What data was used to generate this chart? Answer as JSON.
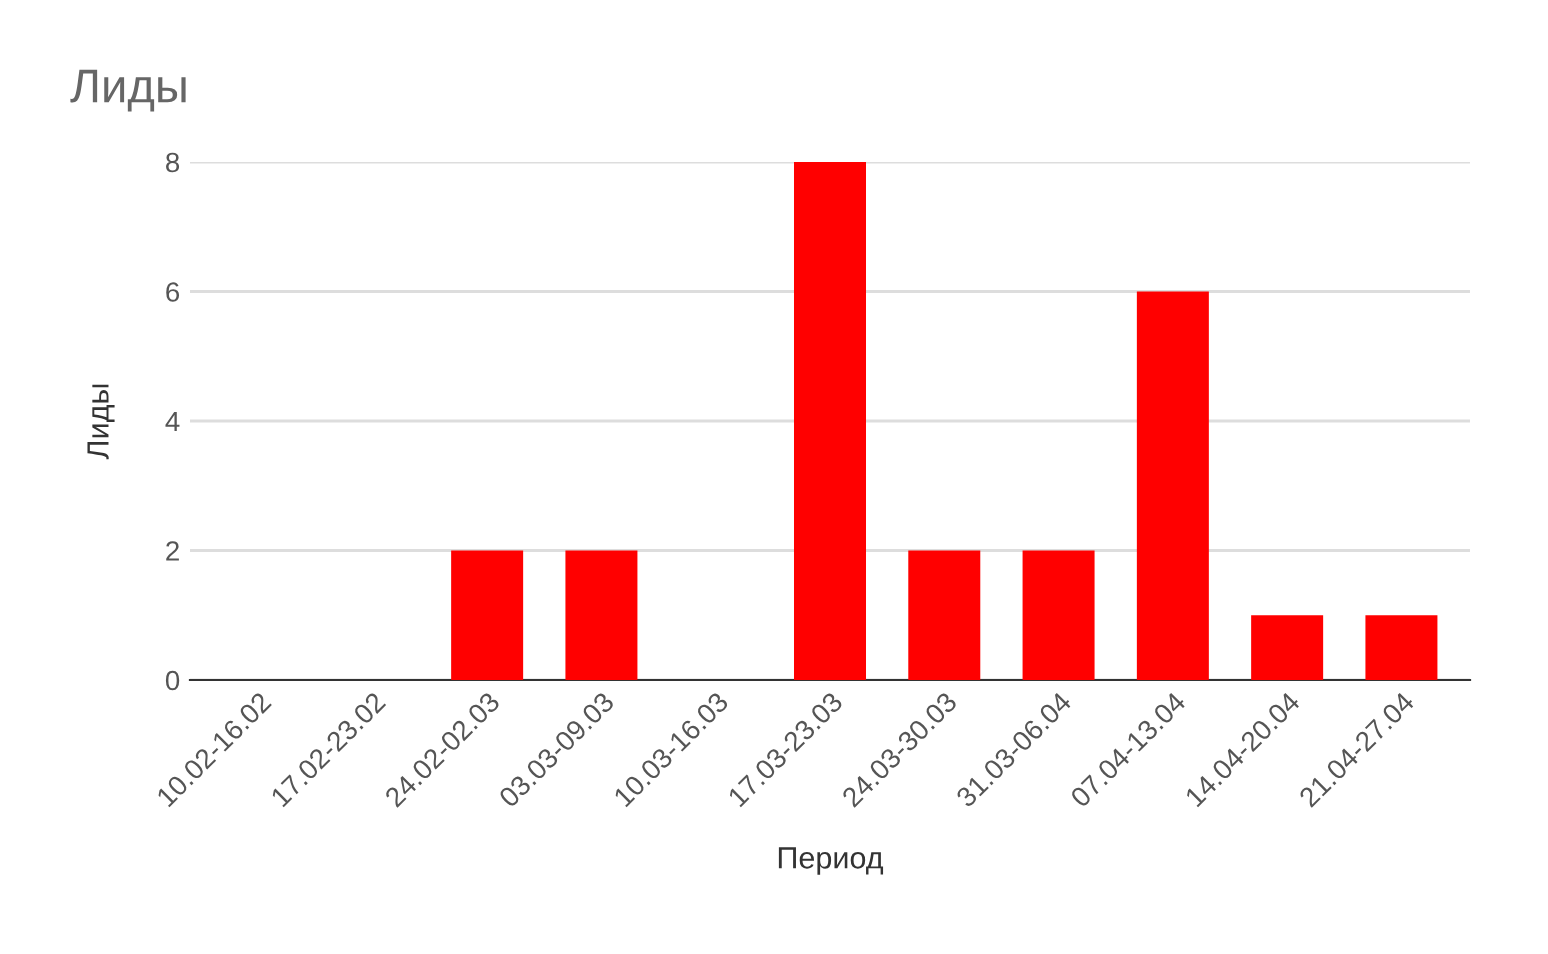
{
  "chart_data": {
    "type": "bar",
    "title": "Лиды",
    "xlabel": "Период",
    "ylabel": "Лиды",
    "categories": [
      "10.02-16.02",
      "17.02-23.02",
      "24.02-02.03",
      "03.03-09.03",
      "10.03-16.03",
      "17.03-23.03",
      "24.03-30.03",
      "31.03-06.04",
      "07.04-13.04",
      "14.04-20.04",
      "21.04-27.04"
    ],
    "values": [
      0,
      0,
      2,
      2,
      0,
      8,
      2,
      2,
      6,
      1,
      1
    ],
    "color": "#ff0000",
    "ylim": [
      0,
      8
    ],
    "yticks": [
      0,
      2,
      4,
      6,
      8
    ],
    "grid": "y"
  }
}
